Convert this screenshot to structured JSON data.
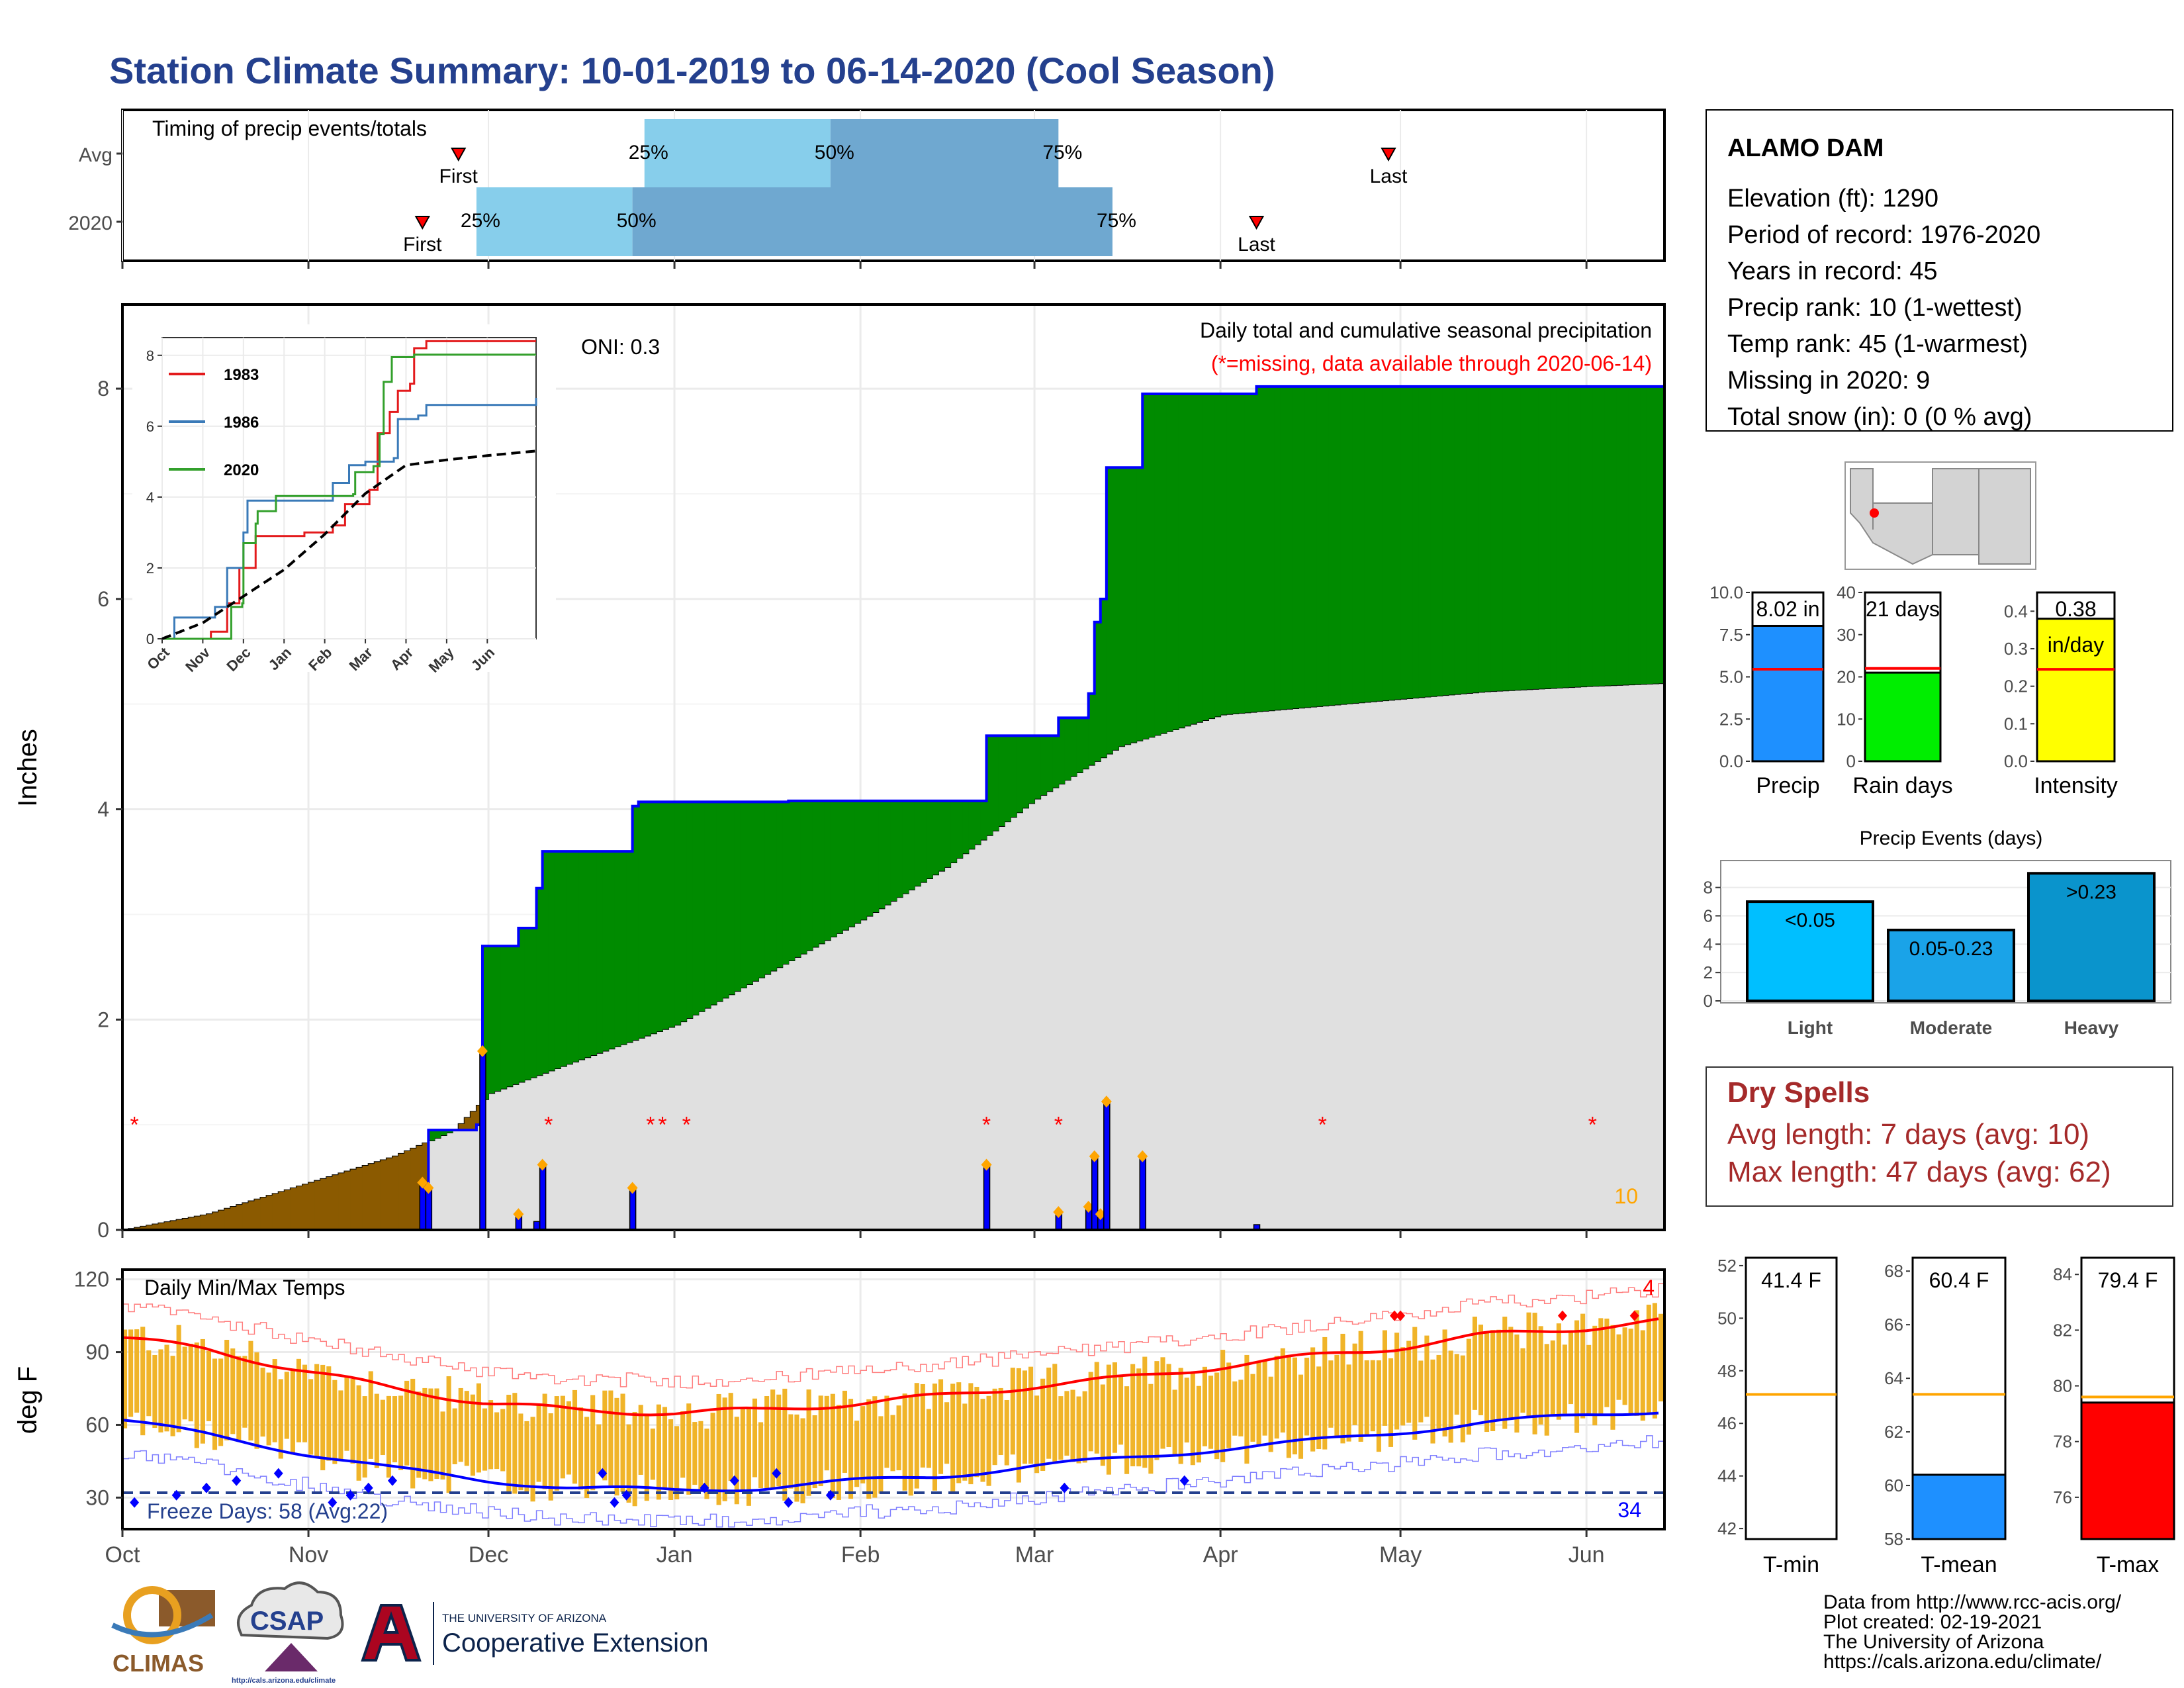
{
  "title": "Station Climate Summary: 10-01-2019 to 06-14-2020 (Cool Season)",
  "colors": {
    "title": "#24408e",
    "precip_green": "#008b00",
    "precip_brown": "#8b5a00",
    "avg_gray": "#e0e0e0",
    "blue": "#0000ff",
    "orange": "#ffa500",
    "temp_bar": "#f0b429",
    "light_blue": "#87ceeb",
    "steel_blue": "#6fa8d0",
    "dry_red": "#a52a2a"
  },
  "timing": {
    "title": "Timing of precip events/totals",
    "rows": [
      {
        "label": "Avg",
        "first_date": "2019-11-26",
        "first": "First",
        "p25": "25%",
        "p50": "50%",
        "p75": "75%",
        "p25_date": "2019-12-27",
        "p50_date": "2020-01-27",
        "p75_date": "2020-03-05",
        "last_date": "2020-04-29",
        "last": "Last"
      },
      {
        "label": "2020",
        "first_date": "2019-11-20",
        "first": "First",
        "p25": "25%",
        "p50": "50%",
        "p75": "75%",
        "p25_date": "2019-11-29",
        "p50_date": "2019-12-25",
        "p75_date": "2020-03-14",
        "last_date": "2020-04-07",
        "last": "Last"
      }
    ]
  },
  "precip_chart": {
    "ylabel": "Inches",
    "oni": "ONI: 0.3",
    "subtitle": "Daily total and cumulative seasonal precipitation",
    "missing_note": "(*=missing, data available through 2020-06-14)",
    "corner_value": "10",
    "y_ticks": [
      "0",
      "2",
      "4",
      "6",
      "8"
    ]
  },
  "month_ticks": [
    "Oct",
    "Nov",
    "Dec",
    "Jan",
    "Feb",
    "Mar",
    "Apr",
    "May",
    "Jun"
  ],
  "inset": {
    "y_ticks": [
      "0",
      "2",
      "4",
      "6",
      "8"
    ],
    "x_ticks": [
      "Oct",
      "Nov",
      "Dec",
      "Jan",
      "Feb",
      "Mar",
      "Apr",
      "May",
      "Jun"
    ],
    "legend": [
      "1983",
      "1986",
      "2020"
    ]
  },
  "station": {
    "name": "ALAMO DAM",
    "lines": [
      "Elevation (ft): 1290",
      "Period of record: 1976-2020",
      "Years in record: 45",
      "Precip rank: 10 (1-wettest)",
      "Temp rank: 45 (1-warmest)",
      "Missing in 2020: 9",
      "Total snow (in): 0 (0 % avg)"
    ]
  },
  "summary_bars": [
    {
      "label": "Precip",
      "value_text": "8.02 in",
      "value": 8.02,
      "avg": 5.45,
      "ymax": 10.0,
      "ticks": [
        "0.0",
        "2.5",
        "5.0",
        "7.5",
        "10.0"
      ],
      "color": "#1e90ff"
    },
    {
      "label": "Rain days",
      "value_text": "21 days",
      "value": 21,
      "avg": 22,
      "ymax": 40,
      "ticks": [
        "0",
        "10",
        "20",
        "30",
        "40"
      ],
      "color": "#00ee00"
    },
    {
      "label": "Intensity",
      "value_text": "0.38",
      "unit_text": "in/day",
      "value": 0.38,
      "avg": 0.245,
      "ymax": 0.45,
      "ticks": [
        "0.0",
        "0.1",
        "0.2",
        "0.3",
        "0.4"
      ],
      "color": "#ffff00"
    }
  ],
  "precip_events": {
    "title": "Precip Events (days)",
    "ticks": [
      "0",
      "2",
      "4",
      "6",
      "8"
    ],
    "bars": [
      {
        "label": "Light",
        "range": "<0.05",
        "value": 7,
        "color": "#00bfff"
      },
      {
        "label": "Moderate",
        "range": "0.05-0.23",
        "value": 5,
        "color": "#1aa3e8"
      },
      {
        "label": "Heavy",
        "range": ">0.23",
        "value": 9,
        "color": "#0a94cc"
      }
    ]
  },
  "dry_spells": {
    "title": "Dry Spells",
    "avg": "Avg length: 7 days (avg: 10)",
    "max": "Max length: 47 days (avg: 62)"
  },
  "temp_chart": {
    "title": "Daily Min/Max Temps",
    "ylabel": "deg F",
    "y_ticks": [
      "30",
      "60",
      "90",
      "120"
    ],
    "freeze": "Freeze Days: 58 (Avg:22)",
    "hot_count": "4",
    "cold_count": "34"
  },
  "temp_summary": [
    {
      "label": "T-min",
      "value_text": "41.4 F",
      "value": 41.4,
      "avg": 47.1,
      "ymin": 41.6,
      "ymax": 52.3,
      "ticks": [
        "42",
        "44",
        "46",
        "48",
        "50",
        "52"
      ],
      "color": "#ffffff"
    },
    {
      "label": "T-mean",
      "value_text": "60.4 F",
      "value": 60.4,
      "avg": 63.4,
      "ymin": 58.0,
      "ymax": 68.5,
      "ticks": [
        "58",
        "60",
        "62",
        "64",
        "66",
        "68"
      ],
      "color": "#1e90ff"
    },
    {
      "label": "T-max",
      "value_text": "79.4 F",
      "value": 79.4,
      "avg": 79.6,
      "ymin": 74.5,
      "ymax": 84.6,
      "ticks": [
        "76",
        "78",
        "80",
        "82",
        "84"
      ],
      "color": "#ff0000"
    }
  ],
  "footer": {
    "lines": [
      "Data from http://www.rcc-acis.org/",
      "Plot created: 02-19-2021",
      "The University of Arizona",
      "https://cals.arizona.edu/climate/"
    ],
    "logos": {
      "climas": "CLIMAS",
      "csap": "CSAP",
      "csap_url": "http://cals.arizona.edu/climate",
      "ua_line1": "THE UNIVERSITY OF ARIZONA",
      "ua_line2": "Cooperative Extension"
    }
  },
  "chart_data": [
    {
      "type": "area",
      "title": "Daily total and cumulative seasonal precipitation",
      "ylabel": "Inches",
      "ylim": [
        0,
        8.8
      ],
      "x_range": [
        "2019-10-01",
        "2020-06-14"
      ],
      "cumulative_2020": [
        [
          "2019-10-01",
          0
        ],
        [
          "2019-11-20",
          0.0
        ],
        [
          "2019-11-21",
          0.95
        ],
        [
          "2019-11-29",
          1.0
        ],
        [
          "2019-11-30",
          2.7
        ],
        [
          "2019-12-06",
          2.87
        ],
        [
          "2019-12-09",
          3.25
        ],
        [
          "2019-12-10",
          3.6
        ],
        [
          "2019-12-25",
          4.03
        ],
        [
          "2019-12-26",
          4.07
        ],
        [
          "2020-01-20",
          4.08
        ],
        [
          "2020-02-21",
          4.08
        ],
        [
          "2020-02-22",
          4.7
        ],
        [
          "2020-03-05",
          4.87
        ],
        [
          "2020-03-10",
          5.1
        ],
        [
          "2020-03-11",
          5.78
        ],
        [
          "2020-03-12",
          6.0
        ],
        [
          "2020-03-13",
          7.25
        ],
        [
          "2020-03-19",
          7.95
        ],
        [
          "2020-04-07",
          8.02
        ],
        [
          "2020-06-14",
          8.02
        ]
      ],
      "cumulative_avg": [
        [
          "2019-10-01",
          0
        ],
        [
          "2019-10-15",
          0.15
        ],
        [
          "2019-11-01",
          0.45
        ],
        [
          "2019-11-15",
          0.7
        ],
        [
          "2019-11-25",
          0.95
        ],
        [
          "2019-12-01",
          1.3
        ],
        [
          "2019-12-15",
          1.6
        ],
        [
          "2020-01-01",
          1.95
        ],
        [
          "2020-01-15",
          2.4
        ],
        [
          "2020-02-01",
          2.95
        ],
        [
          "2020-02-15",
          3.45
        ],
        [
          "2020-03-01",
          4.1
        ],
        [
          "2020-03-15",
          4.6
        ],
        [
          "2020-04-01",
          4.9
        ],
        [
          "2020-04-15",
          4.97
        ],
        [
          "2020-05-01",
          5.05
        ],
        [
          "2020-05-15",
          5.12
        ],
        [
          "2020-06-01",
          5.17
        ],
        [
          "2020-06-14",
          5.2
        ]
      ],
      "daily_precip": [
        [
          "2019-11-20",
          0.45
        ],
        [
          "2019-11-21",
          0.4
        ],
        [
          "2019-11-30",
          1.7
        ],
        [
          "2019-12-06",
          0.15
        ],
        [
          "2019-12-09",
          0.08
        ],
        [
          "2019-12-10",
          0.62
        ],
        [
          "2019-12-25",
          0.4
        ],
        [
          "2020-02-22",
          0.62
        ],
        [
          "2020-03-05",
          0.17
        ],
        [
          "2020-03-10",
          0.22
        ],
        [
          "2020-03-11",
          0.7
        ],
        [
          "2020-03-12",
          0.15
        ],
        [
          "2020-03-13",
          1.22
        ],
        [
          "2020-03-19",
          0.7
        ],
        [
          "2020-04-07",
          0.05
        ]
      ],
      "missing_dates": [
        "2019-10-03",
        "2019-12-11",
        "2019-12-28",
        "2019-12-30",
        "2020-01-03",
        "2020-02-22",
        "2020-03-05",
        "2020-04-18",
        "2020-06-02"
      ]
    },
    {
      "type": "line",
      "title": "",
      "x": [
        "Oct",
        "Nov",
        "Dec",
        "Jan",
        "Feb",
        "Mar",
        "Apr",
        "May",
        "Jun"
      ],
      "series": [
        {
          "name": "1983",
          "points": [
            [
              0,
              0
            ],
            [
              1.2,
              0.2
            ],
            [
              1.6,
              1.0
            ],
            [
              1.9,
              2.0
            ],
            [
              2.3,
              2.9
            ],
            [
              3.5,
              3.0
            ],
            [
              4.2,
              3.2
            ],
            [
              4.5,
              3.8
            ],
            [
              5.1,
              4.2
            ],
            [
              5.3,
              5.8
            ],
            [
              5.6,
              6.4
            ],
            [
              5.8,
              7.0
            ],
            [
              6.1,
              7.2
            ],
            [
              6.2,
              8.2
            ],
            [
              6.5,
              8.4
            ],
            [
              9.2,
              8.4
            ]
          ]
        },
        {
          "name": "1986",
          "points": [
            [
              0,
              0
            ],
            [
              0.3,
              0.6
            ],
            [
              1.3,
              0.9
            ],
            [
              1.6,
              2.0
            ],
            [
              2.0,
              3.0
            ],
            [
              2.1,
              3.9
            ],
            [
              4.2,
              4.4
            ],
            [
              4.6,
              4.9
            ],
            [
              5.0,
              5.0
            ],
            [
              5.7,
              5.1
            ],
            [
              5.8,
              6.2
            ],
            [
              6.3,
              6.3
            ],
            [
              6.5,
              6.6
            ],
            [
              9.2,
              6.8
            ]
          ]
        },
        {
          "name": "2020",
          "points": [
            [
              0,
              0
            ],
            [
              1.65,
              0
            ],
            [
              1.7,
              0.9
            ],
            [
              1.97,
              1.0
            ],
            [
              2.0,
              2.7
            ],
            [
              2.3,
              3.25
            ],
            [
              2.35,
              3.6
            ],
            [
              2.8,
              4.03
            ],
            [
              4.7,
              4.08
            ],
            [
              4.75,
              4.7
            ],
            [
              5.2,
              4.87
            ],
            [
              5.35,
              5.78
            ],
            [
              5.45,
              7.25
            ],
            [
              5.65,
              7.95
            ],
            [
              6.2,
              8.02
            ],
            [
              9.2,
              8.02
            ]
          ]
        },
        {
          "name": "avg",
          "points": [
            [
              0,
              0
            ],
            [
              1,
              0.45
            ],
            [
              2,
              1.2
            ],
            [
              3,
              1.95
            ],
            [
              4,
              2.95
            ],
            [
              5,
              4.1
            ],
            [
              6,
              4.9
            ],
            [
              7,
              5.05
            ],
            [
              8,
              5.17
            ],
            [
              9.2,
              5.3
            ]
          ]
        }
      ],
      "ylim": [
        0,
        8.5
      ]
    },
    {
      "type": "bar",
      "title": "Daily Min/Max Temps",
      "ylabel": "deg F",
      "ylim": [
        17,
        124
      ],
      "x_range": [
        "2019-10-01",
        "2020-06-14"
      ],
      "avg_max": [
        [
          "2019-10-01",
          96
        ],
        [
          "2019-10-15",
          91
        ],
        [
          "2019-11-01",
          82
        ],
        [
          "2019-11-15",
          75
        ],
        [
          "2019-12-01",
          69
        ],
        [
          "2019-12-15",
          66
        ],
        [
          "2020-01-01",
          65
        ],
        [
          "2020-01-15",
          66
        ],
        [
          "2020-02-01",
          69
        ],
        [
          "2020-02-15",
          72
        ],
        [
          "2020-03-01",
          76
        ],
        [
          "2020-03-15",
          79
        ],
        [
          "2020-04-01",
          84
        ],
        [
          "2020-04-15",
          88
        ],
        [
          "2020-05-01",
          92
        ],
        [
          "2020-05-15",
          97
        ],
        [
          "2020-06-01",
          100
        ],
        [
          "2020-06-14",
          103
        ]
      ],
      "avg_min": [
        [
          "2019-10-01",
          62
        ],
        [
          "2019-10-15",
          56
        ],
        [
          "2019-11-01",
          48
        ],
        [
          "2019-11-15",
          42
        ],
        [
          "2019-12-01",
          37
        ],
        [
          "2019-12-15",
          34
        ],
        [
          "2020-01-01",
          33
        ],
        [
          "2020-01-15",
          34
        ],
        [
          "2020-02-01",
          37
        ],
        [
          "2020-02-15",
          39
        ],
        [
          "2020-03-01",
          43
        ],
        [
          "2020-03-15",
          46
        ],
        [
          "2020-04-01",
          50
        ],
        [
          "2020-04-15",
          53
        ],
        [
          "2020-05-01",
          57
        ],
        [
          "2020-05-15",
          61
        ],
        [
          "2020-06-01",
          64
        ],
        [
          "2020-06-14",
          66
        ]
      ],
      "freeze_line": 32
    }
  ]
}
